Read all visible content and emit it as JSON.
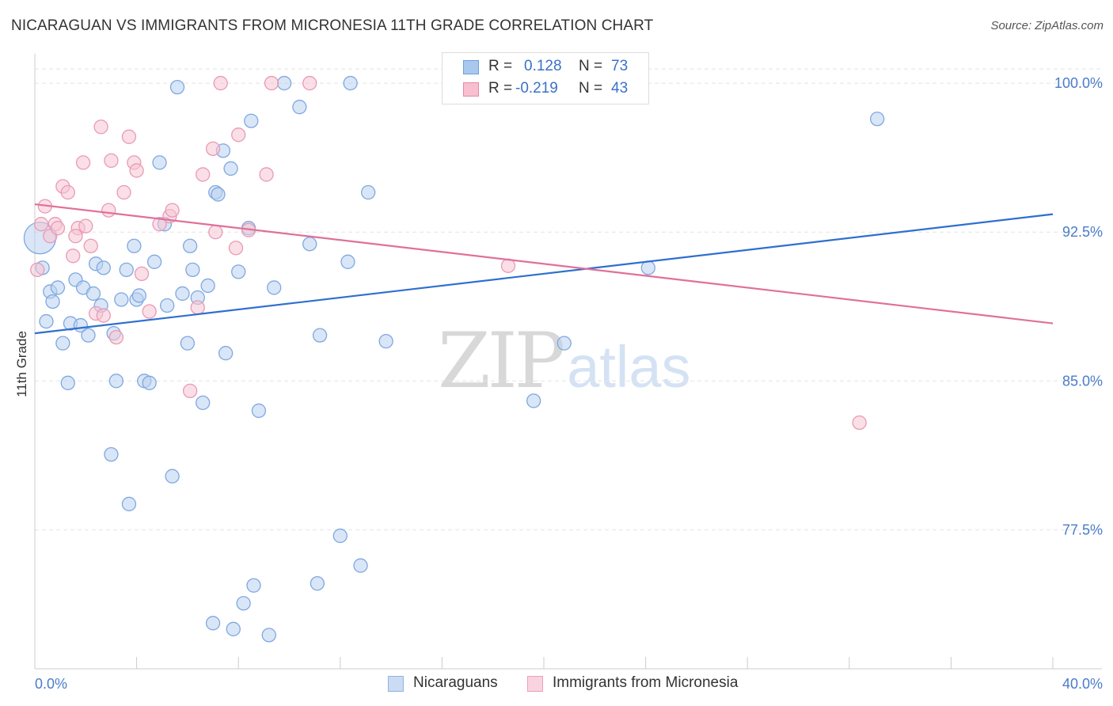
{
  "title": "NICARAGUAN VS IMMIGRANTS FROM MICRONESIA 11TH GRADE CORRELATION CHART",
  "source": "Source: ZipAtlas.com",
  "watermark": {
    "part1": "ZIP",
    "part2": "atlas"
  },
  "stats": {
    "r_label": "R =",
    "n_label": "N =",
    "rows": [
      {
        "r": "0.128",
        "n": "73",
        "color": "#a8c8ee",
        "border": "#6d9fd8",
        "text_color": "#3a72c8"
      },
      {
        "r": "-0.219",
        "n": "43",
        "color": "#f7bfd0",
        "border": "#e48aa8",
        "text_color": "#3a72c8"
      }
    ]
  },
  "legend": [
    {
      "label": "Nicaraguans",
      "color": "#c9dcf4",
      "border": "#8fb4e2"
    },
    {
      "label": "Immigrants from Micronesia",
      "color": "#f9d3df",
      "border": "#e9a2ba"
    }
  ],
  "chart_data": {
    "type": "scatter",
    "title": "NICARAGUAN VS IMMIGRANTS FROM MICRONESIA 11TH GRADE CORRELATION CHART",
    "xlabel": "",
    "ylabel": "11th Grade",
    "xlim": [
      0,
      40
    ],
    "ylim": [
      70.5,
      101
    ],
    "x_tick_labels": [
      "0.0%",
      "40.0%"
    ],
    "y_ticks": [
      77.5,
      85.0,
      92.5,
      100.0
    ],
    "y_tick_labels": [
      "77.5%",
      "85.0%",
      "92.5%",
      "100.0%"
    ],
    "grid": true,
    "series": [
      {
        "name": "Nicaraguans",
        "color": "#7fa8df",
        "fill": "#b9d1f1",
        "trend": {
          "x": [
            0,
            40
          ],
          "y": [
            87.4,
            93.4
          ],
          "color": "#2f6fcf"
        },
        "points": [
          [
            0.2,
            92.2
          ],
          [
            0.3,
            90.7
          ],
          [
            0.45,
            88.0
          ],
          [
            0.6,
            89.5
          ],
          [
            0.7,
            89.0
          ],
          [
            0.9,
            89.7
          ],
          [
            1.1,
            86.9
          ],
          [
            1.3,
            84.9
          ],
          [
            1.4,
            87.9
          ],
          [
            1.6,
            90.1
          ],
          [
            1.8,
            87.8
          ],
          [
            1.9,
            89.7
          ],
          [
            2.1,
            87.3
          ],
          [
            2.3,
            89.4
          ],
          [
            2.4,
            90.9
          ],
          [
            2.6,
            88.8
          ],
          [
            2.7,
            90.7
          ],
          [
            3.0,
            81.3
          ],
          [
            3.1,
            87.4
          ],
          [
            3.2,
            85.0
          ],
          [
            3.4,
            89.1
          ],
          [
            3.6,
            90.6
          ],
          [
            3.7,
            78.8
          ],
          [
            3.9,
            91.8
          ],
          [
            4.0,
            89.1
          ],
          [
            4.1,
            89.3
          ],
          [
            4.3,
            85.0
          ],
          [
            4.5,
            84.9
          ],
          [
            4.7,
            91.0
          ],
          [
            4.9,
            96.0
          ],
          [
            5.1,
            92.9
          ],
          [
            5.2,
            88.8
          ],
          [
            5.4,
            80.2
          ],
          [
            5.6,
            99.8
          ],
          [
            5.8,
            89.4
          ],
          [
            6.0,
            86.9
          ],
          [
            6.1,
            91.8
          ],
          [
            6.2,
            90.6
          ],
          [
            6.4,
            89.2
          ],
          [
            6.6,
            83.9
          ],
          [
            6.8,
            89.8
          ],
          [
            7.0,
            72.8
          ],
          [
            7.1,
            94.5
          ],
          [
            7.2,
            94.4
          ],
          [
            7.4,
            96.6
          ],
          [
            7.5,
            86.4
          ],
          [
            7.7,
            95.7
          ],
          [
            7.8,
            72.5
          ],
          [
            8.0,
            90.5
          ],
          [
            8.2,
            73.8
          ],
          [
            8.4,
            92.7
          ],
          [
            8.5,
            98.1
          ],
          [
            8.6,
            74.7
          ],
          [
            8.8,
            83.5
          ],
          [
            9.2,
            72.2
          ],
          [
            9.4,
            89.7
          ],
          [
            9.8,
            100.0
          ],
          [
            10.4,
            98.8
          ],
          [
            10.8,
            91.9
          ],
          [
            11.1,
            74.8
          ],
          [
            11.2,
            87.3
          ],
          [
            12.0,
            77.2
          ],
          [
            12.3,
            91.0
          ],
          [
            12.4,
            100.0
          ],
          [
            12.8,
            75.7
          ],
          [
            13.1,
            94.5
          ],
          [
            13.8,
            87.0
          ],
          [
            17.1,
            100.0
          ],
          [
            18.5,
            100.0
          ],
          [
            19.6,
            84.0
          ],
          [
            20.8,
            86.9
          ],
          [
            24.1,
            90.7
          ],
          [
            33.1,
            98.2
          ]
        ]
      },
      {
        "name": "Immigrants from Micronesia",
        "color": "#e99ab5",
        "fill": "#f6c4d4",
        "trend": {
          "x": [
            0,
            40
          ],
          "y": [
            93.9,
            87.9
          ],
          "color": "#e0709a"
        },
        "points": [
          [
            0.1,
            90.6
          ],
          [
            0.25,
            92.9
          ],
          [
            0.4,
            93.8
          ],
          [
            0.6,
            92.3
          ],
          [
            0.8,
            92.9
          ],
          [
            0.9,
            92.7
          ],
          [
            1.1,
            94.8
          ],
          [
            1.3,
            94.5
          ],
          [
            1.5,
            91.3
          ],
          [
            1.7,
            92.7
          ],
          [
            1.6,
            92.3
          ],
          [
            1.9,
            96.0
          ],
          [
            2.0,
            92.8
          ],
          [
            2.2,
            91.8
          ],
          [
            2.4,
            88.4
          ],
          [
            2.6,
            97.8
          ],
          [
            2.7,
            88.3
          ],
          [
            2.9,
            93.6
          ],
          [
            3.0,
            96.1
          ],
          [
            3.2,
            87.2
          ],
          [
            3.5,
            94.5
          ],
          [
            3.7,
            97.3
          ],
          [
            3.9,
            96.0
          ],
          [
            4.0,
            95.6
          ],
          [
            4.2,
            90.4
          ],
          [
            4.5,
            88.5
          ],
          [
            4.9,
            92.9
          ],
          [
            5.3,
            93.3
          ],
          [
            5.4,
            93.6
          ],
          [
            6.1,
            84.5
          ],
          [
            6.4,
            88.7
          ],
          [
            6.6,
            95.4
          ],
          [
            7.0,
            96.7
          ],
          [
            7.1,
            92.5
          ],
          [
            7.9,
            91.7
          ],
          [
            8.0,
            97.4
          ],
          [
            8.4,
            92.6
          ],
          [
            9.1,
            95.4
          ],
          [
            9.3,
            100.0
          ],
          [
            10.8,
            100.0
          ],
          [
            7.3,
            100.0
          ],
          [
            18.6,
            90.8
          ],
          [
            32.4,
            82.9
          ]
        ]
      }
    ]
  }
}
